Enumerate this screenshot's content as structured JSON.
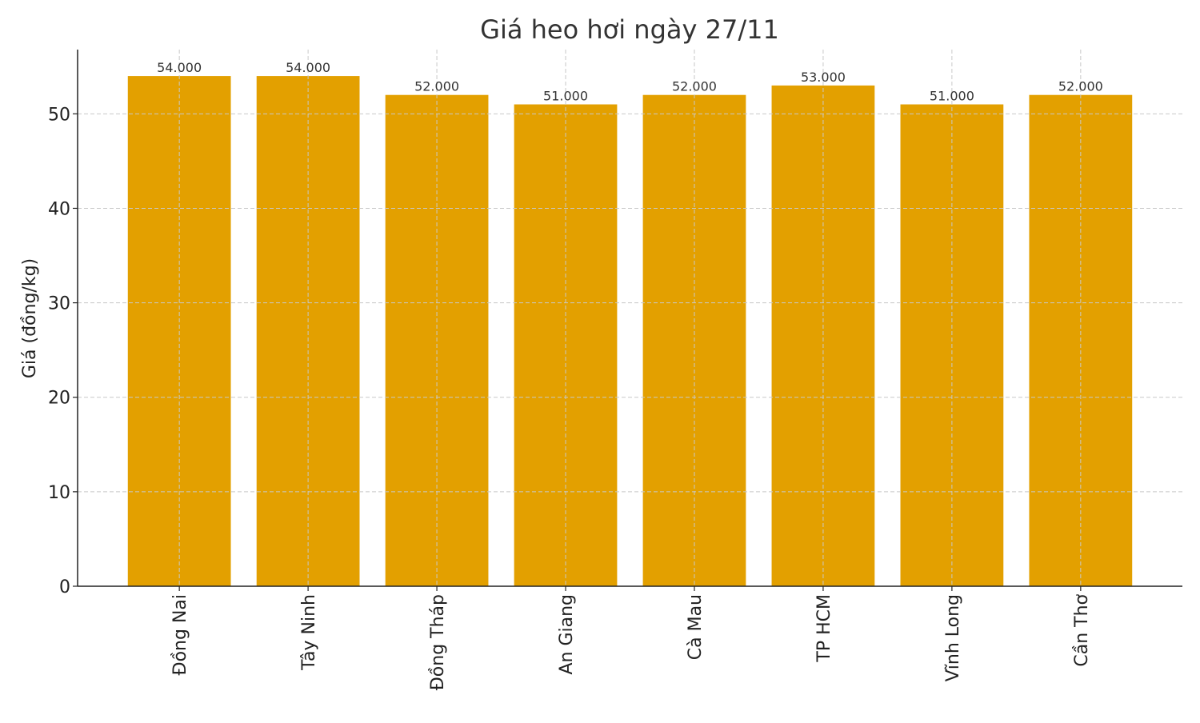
{
  "chart_data": {
    "type": "bar",
    "title": "Giá heo hơi ngày 27/11",
    "xlabel": "",
    "ylabel": "Giá (đồng/kg)",
    "categories": [
      "Đồng Nai",
      "Tây Ninh",
      "Đồng Tháp",
      "An Giang",
      "Cà Mau",
      "TP HCM",
      "Vĩnh Long",
      "Cần Thơ"
    ],
    "values": [
      54,
      54,
      52,
      51,
      52,
      53,
      51,
      52
    ],
    "data_labels": [
      "54.000",
      "54.000",
      "52.000",
      "51.000",
      "52.000",
      "53.000",
      "51.000",
      "52.000"
    ],
    "ylim": [
      0,
      56.8
    ],
    "yticks": [
      0,
      10,
      20,
      30,
      40,
      50
    ],
    "grid": true,
    "bar_color": "#E3A000",
    "legend": "none"
  }
}
